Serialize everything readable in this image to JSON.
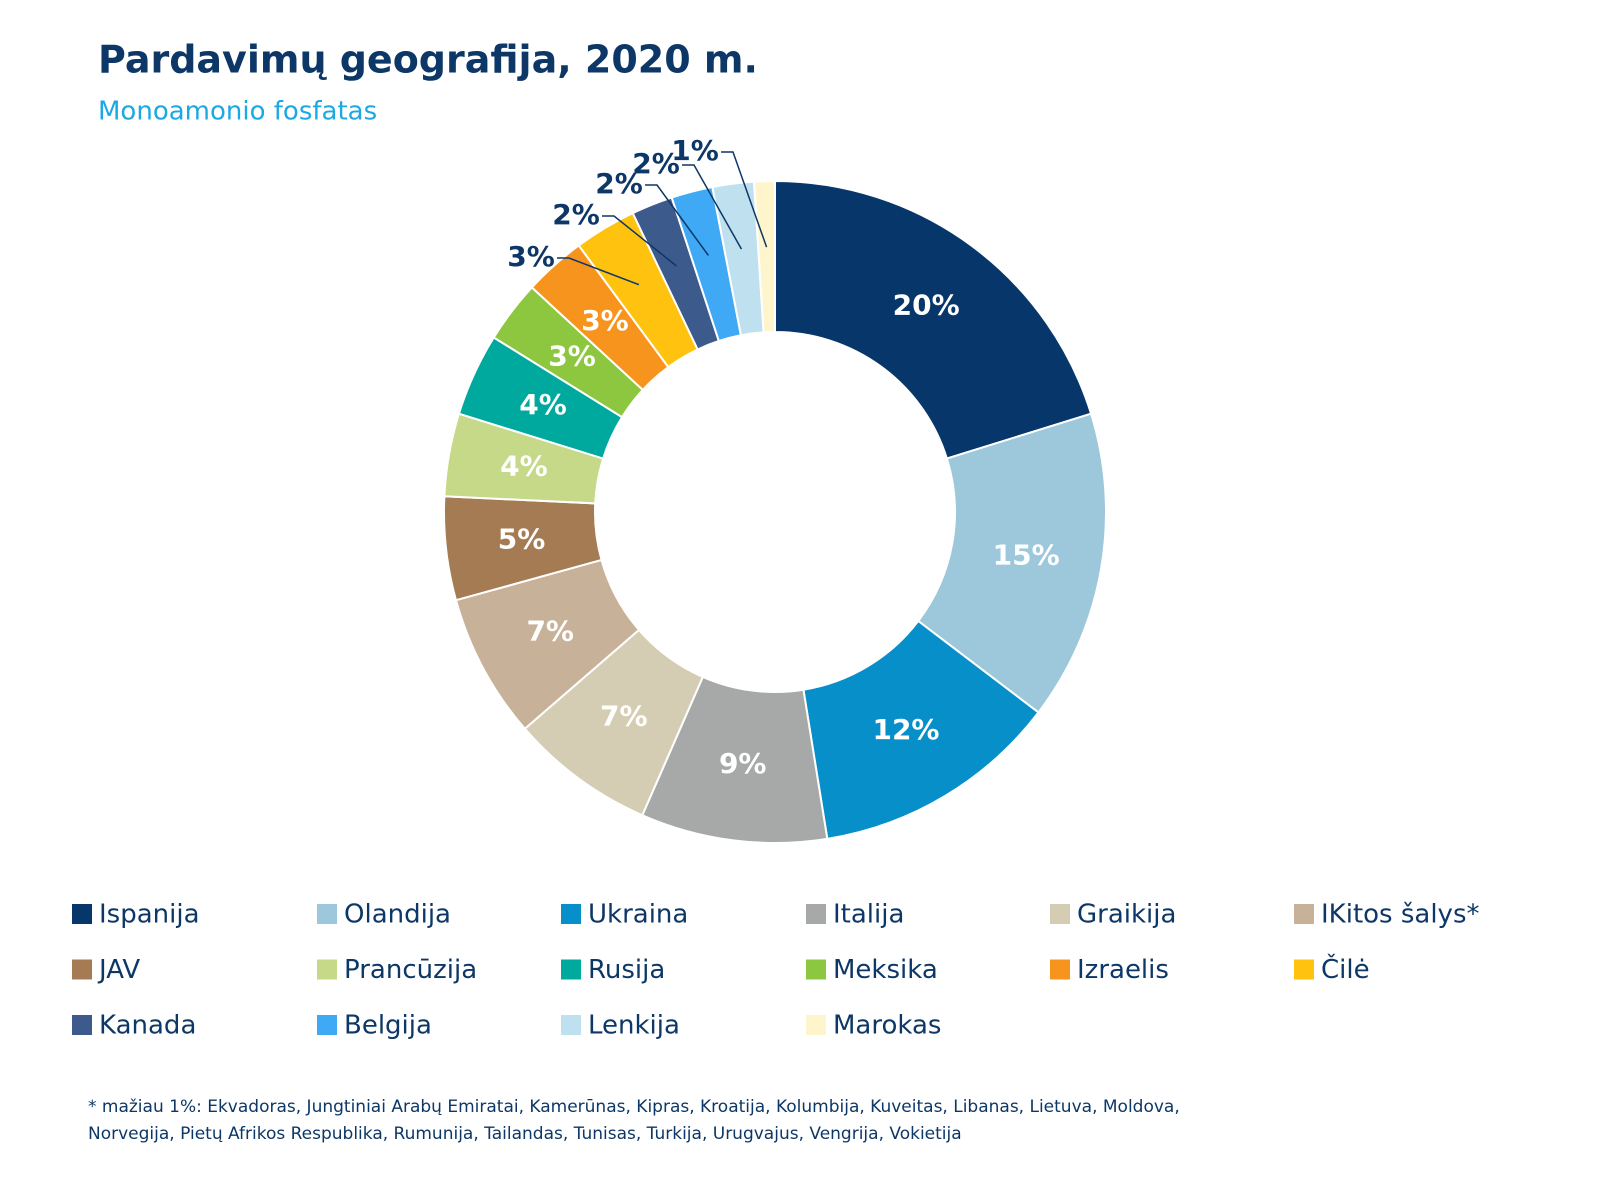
{
  "chart_data": {
    "type": "pie",
    "title": "Pardavimų geografija, 2020 m.",
    "subtitle": "Monoamonio fosfatas",
    "categories": [
      "Ispanija",
      "Olandija",
      "Ukraina",
      "Italija",
      "Graikija",
      "IKitos šalys*",
      "JAV",
      "Prancūzija",
      "Rusija",
      "Meksika",
      "Izraelis",
      "Čilė",
      "Kanada",
      "Belgija",
      "Lenkija",
      "Marokas"
    ],
    "values": [
      20,
      15,
      12,
      9,
      7,
      7,
      5,
      4,
      4,
      3,
      3,
      3,
      2,
      2,
      2,
      1
    ],
    "value_labels": [
      "20%",
      "15%",
      "12%",
      "9%",
      "7%",
      "7%",
      "5%",
      "4%",
      "4%",
      "3%",
      "3%",
      "3%",
      "2%",
      "2%",
      "2%",
      "1%"
    ],
    "colors": [
      "#06366a",
      "#9dc8dc",
      "#068fc9",
      "#a7a9a9",
      "#d5cdb3",
      "#c8b199",
      "#a57b53",
      "#c6d988",
      "#00a99d",
      "#8dc63f",
      "#f7941d",
      "#ffc20e",
      "#3d5a8c",
      "#3fa9f5",
      "#bfe0ef",
      "#fff5cc"
    ],
    "donut": true,
    "legend": "bottom",
    "footnote": [
      "* mažiau 1%: Ekvadoras, Jungtiniai Arabų Emiratai, Kamerūnas, Kipras, Kroatija, Kolumbija, Kuveitas, Libanas, Lietuva, Moldova,",
      "Norvegija, Pietų Afrikos Respublika, Rumunija, Tailandas, Tunisas, Turkija, Urugvajus, Vengrija, Vokietija"
    ]
  }
}
